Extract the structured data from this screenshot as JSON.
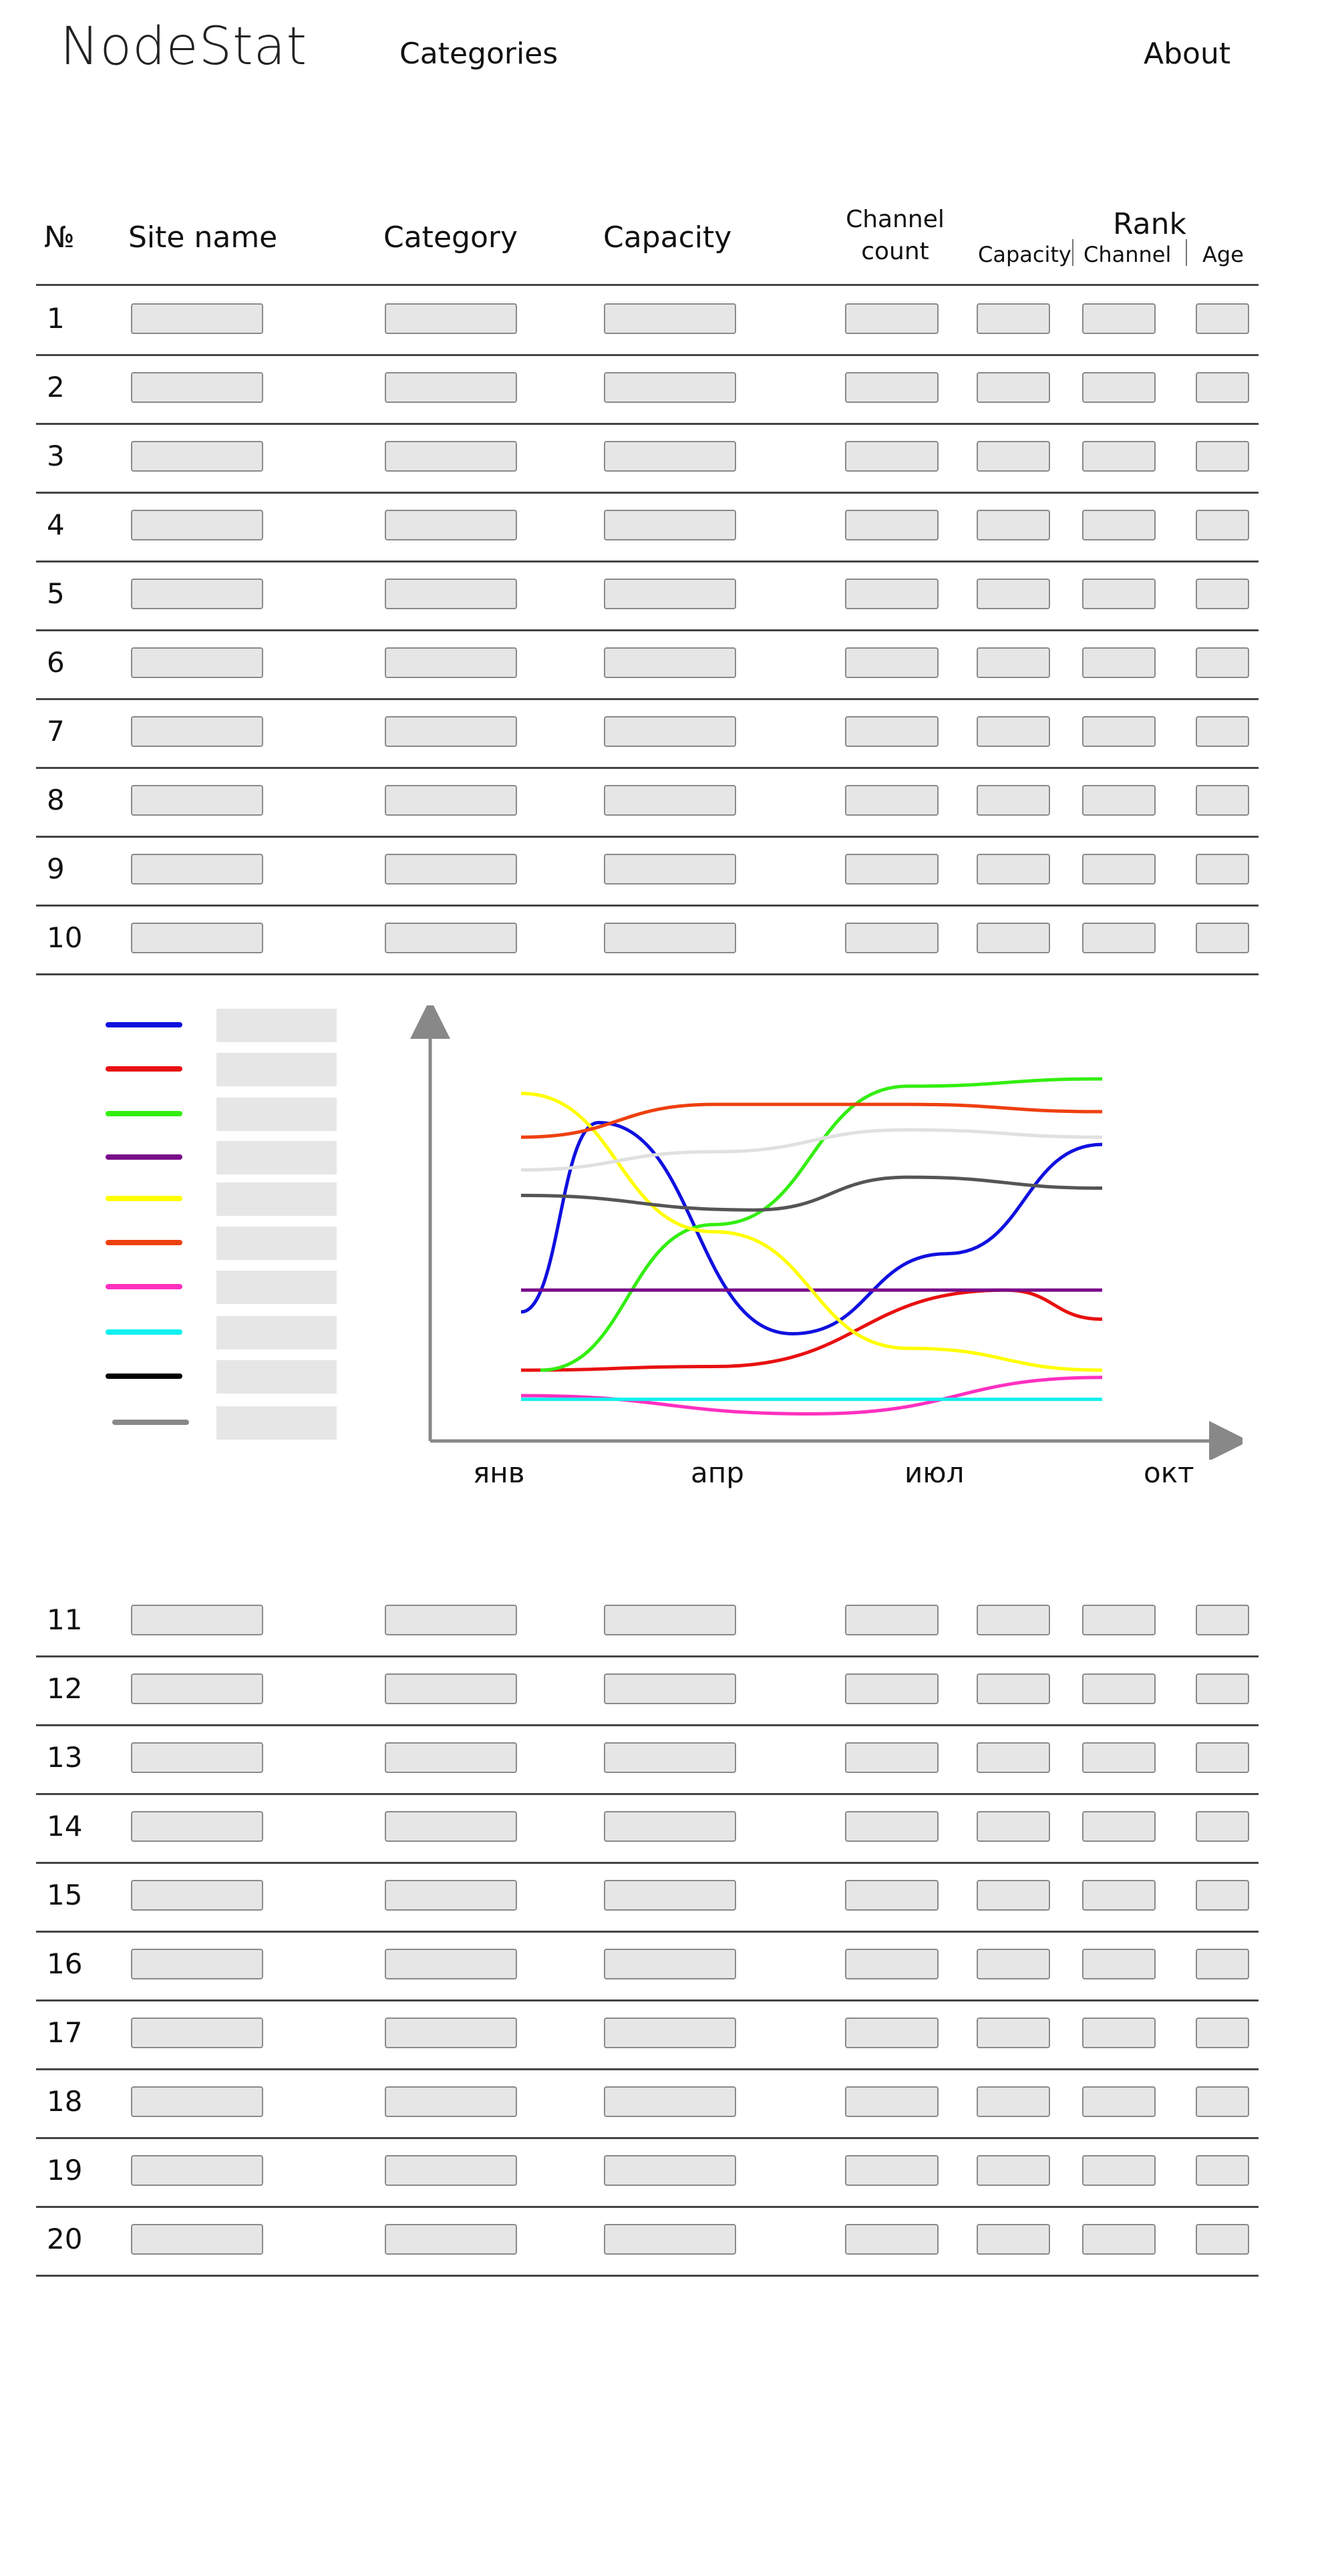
{
  "header": {
    "logo": "NodeStat",
    "nav_categories": "Categories",
    "nav_about": "About"
  },
  "table": {
    "columns": {
      "number": "№",
      "site_name": "Site name",
      "category": "Category",
      "capacity": "Capacity",
      "channel_count": "Channel count",
      "rank": "Rank",
      "rank_capacity": "Capacity",
      "rank_channel": "Channel",
      "rank_age": "Age"
    },
    "rows_top": [
      "1",
      "2",
      "3",
      "4",
      "5",
      "6",
      "7",
      "8",
      "9",
      "10"
    ],
    "rows_bottom": [
      "11",
      "12",
      "13",
      "14",
      "15",
      "16",
      "17",
      "18",
      "19",
      "20"
    ]
  },
  "legend_colors": [
    "#1010e0",
    "#e81010",
    "#33ee10",
    "#7a0a8a",
    "#ffff00",
    "#ee4010",
    "#ff30c0",
    "#10f0f0",
    "#000000",
    "#888888"
  ],
  "chart_data": {
    "type": "line",
    "x": [
      "янв",
      "апр",
      "июл",
      "окт"
    ],
    "series": [
      {
        "color": "#1010e0",
        "values": [
          [
            0,
            0.36
          ],
          [
            0.4,
            0.88
          ],
          [
            1.4,
            0.3
          ],
          [
            2.2,
            0.52
          ],
          [
            3,
            0.82
          ]
        ]
      },
      {
        "color": "#e81010",
        "values": [
          [
            0,
            0.2
          ],
          [
            1,
            0.21
          ],
          [
            2.5,
            0.42
          ],
          [
            3,
            0.34
          ]
        ]
      },
      {
        "color": "#33ee10",
        "values": [
          [
            0.1,
            0.2
          ],
          [
            1,
            0.6
          ],
          [
            2,
            0.98
          ],
          [
            3,
            1.0
          ]
        ]
      },
      {
        "color": "#7a0a8a",
        "values": [
          [
            0,
            0.42
          ],
          [
            3,
            0.42
          ]
        ]
      },
      {
        "color": "#ffff00",
        "values": [
          [
            0,
            0.96
          ],
          [
            1,
            0.58
          ],
          [
            2,
            0.26
          ],
          [
            3,
            0.2
          ]
        ]
      },
      {
        "color": "#ee4010",
        "values": [
          [
            0,
            0.84
          ],
          [
            1,
            0.93
          ],
          [
            2,
            0.93
          ],
          [
            3,
            0.91
          ]
        ]
      },
      {
        "color": "#ff30c0",
        "values": [
          [
            0,
            0.13
          ],
          [
            1.5,
            0.08
          ],
          [
            3,
            0.18
          ]
        ]
      },
      {
        "color": "#10f0f0",
        "values": [
          [
            0,
            0.12
          ],
          [
            3,
            0.12
          ]
        ]
      },
      {
        "color": "#555555",
        "values": [
          [
            0,
            0.68
          ],
          [
            1.2,
            0.64
          ],
          [
            2,
            0.73
          ],
          [
            3,
            0.7
          ]
        ]
      },
      {
        "color": "#e0e0e0",
        "values": [
          [
            0,
            0.75
          ],
          [
            1,
            0.8
          ],
          [
            2,
            0.86
          ],
          [
            3,
            0.84
          ]
        ]
      }
    ]
  }
}
